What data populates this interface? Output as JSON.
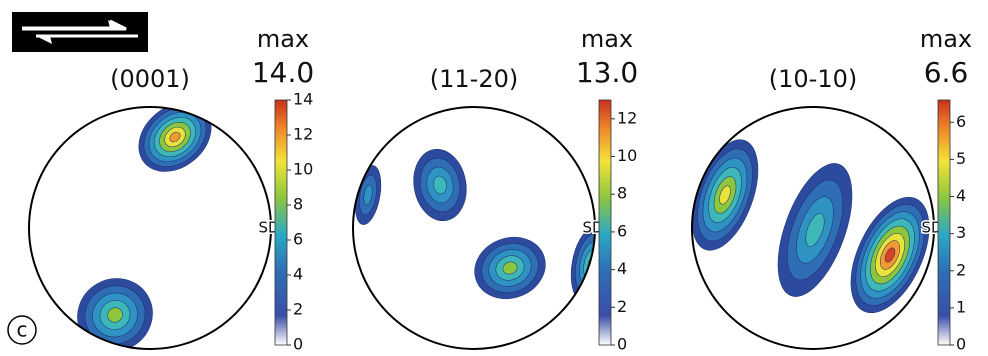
{
  "panel_label": "c",
  "panels": [
    {
      "title": "(0001)",
      "max_label": "max",
      "max_value": "14.0",
      "direction_label": "SD",
      "colorbar": {
        "lim": [
          0,
          14
        ],
        "ticks": [
          0,
          2,
          4,
          6,
          8,
          10,
          12,
          14
        ]
      }
    },
    {
      "title": "(11-20)",
      "max_label": "max",
      "max_value": "13.0",
      "direction_label": "SD",
      "colorbar": {
        "lim": [
          0,
          13
        ],
        "ticks": [
          0,
          2,
          4,
          6,
          8,
          10,
          12
        ]
      }
    },
    {
      "title": "(10-10)",
      "max_label": "max",
      "max_value": "6.6",
      "direction_label": "SD",
      "colorbar": {
        "lim": [
          0,
          6.6
        ],
        "ticks": [
          0,
          1,
          2,
          3,
          4,
          5,
          6
        ]
      }
    }
  ]
}
